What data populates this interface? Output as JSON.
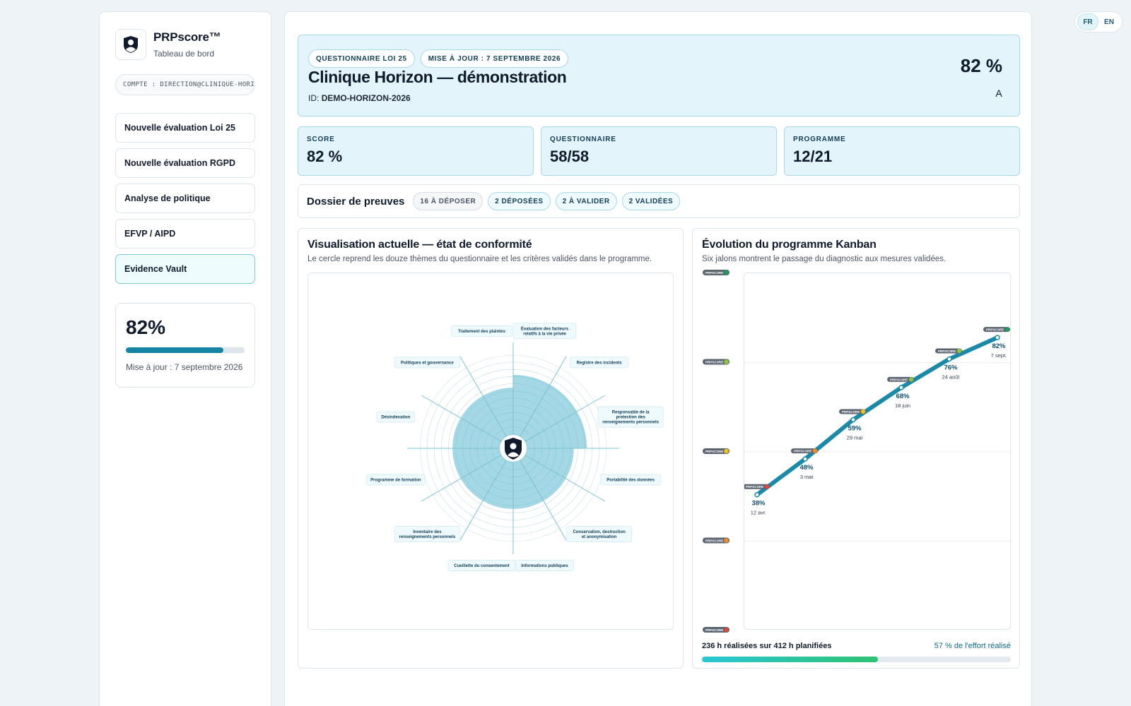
{
  "lang": {
    "fr": "FR",
    "en": "EN"
  },
  "sidebar": {
    "brand_name": "PRPscore™",
    "brand_sub": "Tableau de bord",
    "account": "COMPTE : DIRECTION@CLINIQUE-HORIZON",
    "nav": [
      {
        "label": "Nouvelle évaluation Loi 25"
      },
      {
        "label": "Nouvelle évaluation RGPD"
      },
      {
        "label": "Analyse de politique"
      },
      {
        "label": "EFVP / AIPD"
      },
      {
        "label": "Evidence Vault"
      }
    ],
    "score": "82%",
    "score_fraction": 0.82,
    "updated": "Mise à jour : 7 septembre 2026"
  },
  "hero": {
    "chip_questionnaire": "QUESTIONNAIRE LOI 25",
    "chip_update": "MISE À JOUR : 7 SEPTEMBRE 2026",
    "title": "Clinique Horizon — démonstration",
    "id_label": "ID:",
    "id_value": "DEMO-HORIZON-2026",
    "score": "82 %",
    "grade": "A"
  },
  "kpis": [
    {
      "label": "SCORE",
      "value": "82 %"
    },
    {
      "label": "QUESTIONNAIRE",
      "value": "58/58"
    },
    {
      "label": "PROGRAMME",
      "value": "12/21"
    }
  ],
  "evidence": {
    "title": "Dossier de preuves",
    "to_upload": "16 À DÉPOSER",
    "uploaded": "2 DÉPOSÉES",
    "to_validate": "2 À VALIDER",
    "validated": "2 VALIDÉES"
  },
  "radar": {
    "title": "Visualisation actuelle — état de conformité",
    "subtitle": "Le cercle reprend les douze thèmes du questionnaire et les critères validés dans le programme.",
    "themes": [
      {
        "label": "Évaluation des facteurs relatifs à la vie privée",
        "value": 0.85
      },
      {
        "label": "Registre des incidents",
        "value": 0.85
      },
      {
        "label": "Responsable de la protection des renseignements personnels",
        "value": 0.85
      },
      {
        "label": "Portabilité des données",
        "value": 0.7
      },
      {
        "label": "Conservation, destruction et anonymisation",
        "value": 0.7
      },
      {
        "label": "Informations publiques",
        "value": 0.7
      },
      {
        "label": "Cueillette du consentement",
        "value": 0.7
      },
      {
        "label": "Inventaire des renseignements personnels",
        "value": 0.7
      },
      {
        "label": "Programme de formation",
        "value": 0.7
      },
      {
        "label": "Désindexation",
        "value": 0.7
      },
      {
        "label": "Politiques et gouvernance",
        "value": 0.7
      },
      {
        "label": "Traitement des plaintes",
        "value": 0.7
      }
    ]
  },
  "kanban": {
    "title": "Évolution du programme Kanban",
    "subtitle": "Six jalons montrent le passage du diagnostic aux mesures validées.",
    "brand_mark": "PRPSCORE",
    "milestones": [
      {
        "pct": 38,
        "label": "38%",
        "date": "12 avr.",
        "color": "#e0463a"
      },
      {
        "pct": 48,
        "label": "48%",
        "date": "3 mai",
        "color": "#f08a24"
      },
      {
        "pct": 59,
        "label": "59%",
        "date": "29 mai",
        "color": "#f2c21b"
      },
      {
        "pct": 68,
        "label": "68%",
        "date": "18 juin",
        "color": "#8cc63f"
      },
      {
        "pct": 76,
        "label": "76%",
        "date": "24 août",
        "color": "#8cc63f"
      },
      {
        "pct": 82,
        "label": "82%",
        "date": "7 sept.",
        "color": "#1e9e55"
      }
    ],
    "levels": [
      {
        "pct": 100,
        "color": "#1e9e55"
      },
      {
        "pct": 75,
        "color": "#8cc63f"
      },
      {
        "pct": 50,
        "color": "#f2c21b"
      },
      {
        "pct": 25,
        "color": "#f08a24"
      },
      {
        "pct": 0,
        "color": "#e0463a"
      }
    ],
    "effort_done": "236 h réalisées sur 412 h planifiées",
    "effort_pct": "57 % de l'effort réalisé",
    "effort_fraction": 0.57
  }
}
